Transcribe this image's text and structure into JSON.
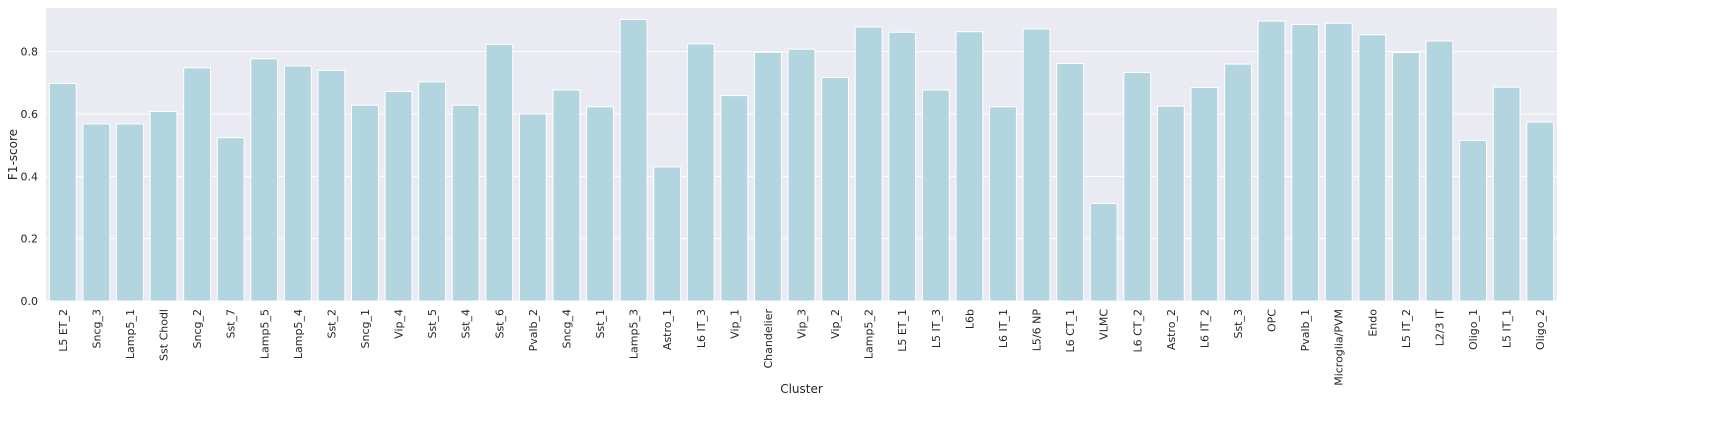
{
  "chart_data": {
    "type": "bar",
    "xlabel": "Cluster",
    "ylabel": "F1-score",
    "ylim": [
      0,
      0.94
    ],
    "yticks": [
      "0.0",
      "0.2",
      "0.4",
      "0.6",
      "0.8"
    ],
    "grid": true,
    "colors": {
      "bar": "#b3d5e0",
      "background": "#eaeaf2",
      "grid": "#ffffff"
    },
    "categories": [
      "L5 ET_2",
      "Sncg_3",
      "Lamp5_1",
      "Sst Chodl",
      "Sncg_2",
      "Sst_7",
      "Lamp5_5",
      "Lamp5_4",
      "Sst_2",
      "Sncg_1",
      "Vip_4",
      "Sst_5",
      "Sst_4",
      "Sst_6",
      "Pvalb_2",
      "Sncg_4",
      "Sst_1",
      "Lamp5_3",
      "Astro_1",
      "L6 IT_3",
      "Vip_1",
      "Chandelier",
      "Vip_3",
      "Vip_2",
      "Lamp5_2",
      "L5 ET_1",
      "L5 IT_3",
      "L6b",
      "L6 IT_1",
      "L5/6 NP",
      "L6 CT_1",
      "VLMC",
      "L6 CT_2",
      "Astro_2",
      "L6 IT_2",
      "Sst_3",
      "OPC",
      "Pvalb_1",
      "Microglia/PVM",
      "Endo",
      "L5 IT_2",
      "L2/3 IT",
      "Oligo_1",
      "L5 IT_1",
      "Oligo_2"
    ],
    "values": [
      0.698,
      0.568,
      0.568,
      0.608,
      0.748,
      0.524,
      0.777,
      0.754,
      0.74,
      0.628,
      0.672,
      0.703,
      0.628,
      0.823,
      0.6,
      0.677,
      0.623,
      0.903,
      0.43,
      0.825,
      0.659,
      0.798,
      0.808,
      0.717,
      0.879,
      0.862,
      0.677,
      0.864,
      0.623,
      0.873,
      0.762,
      0.313,
      0.733,
      0.625,
      0.685,
      0.76,
      0.898,
      0.887,
      0.891,
      0.854,
      0.797,
      0.834,
      0.515,
      0.686,
      0.574
    ]
  }
}
